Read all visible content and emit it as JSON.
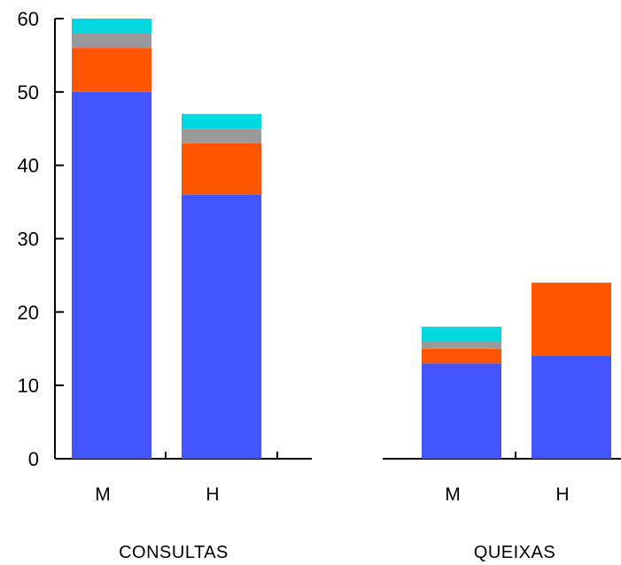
{
  "chart_data": {
    "type": "bar",
    "stacked": true,
    "grid": false,
    "legend": "none",
    "ylim": [
      0,
      60
    ],
    "y_ticks": [
      "0",
      "10",
      "20",
      "30",
      "40",
      "50",
      "60"
    ],
    "colors": [
      "#4455ff",
      "#ff5500",
      "#999999",
      "#00d8df"
    ],
    "groups": [
      {
        "label": "CONSULTAS",
        "categories": [
          "M",
          "H"
        ],
        "stacks": [
          [
            50,
            6,
            2,
            2
          ],
          [
            36,
            7,
            2,
            2
          ]
        ]
      },
      {
        "label": "QUEIXAS",
        "categories": [
          "M",
          "H"
        ],
        "stacks": [
          [
            13,
            2,
            1,
            2
          ],
          [
            14,
            10,
            0,
            0
          ]
        ]
      }
    ]
  }
}
